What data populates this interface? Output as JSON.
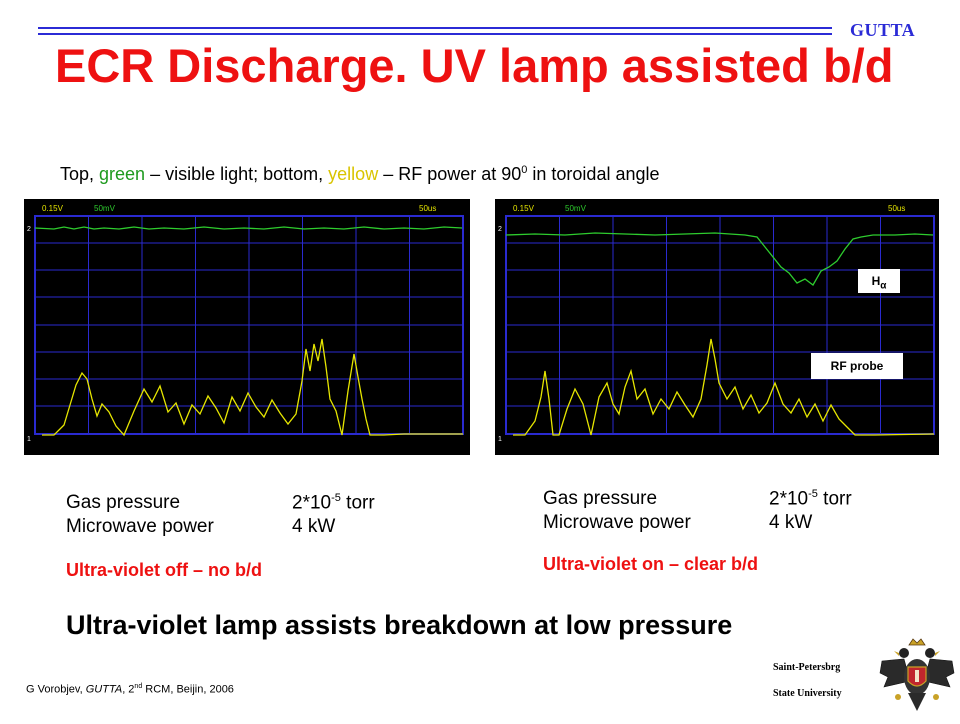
{
  "header": {
    "brand": "GUTTA",
    "title": "ECR Discharge. UV lamp assisted b/d"
  },
  "subtitle": {
    "p1": "Top, ",
    "green_word": "green",
    "p2": " – visible light; bottom, ",
    "yellow_word": "yellow",
    "p3": " – RF power at 90",
    "sup": "0",
    "p4": " in toroidal angle"
  },
  "scopes": [
    {
      "ch1": "0.15V",
      "ch2": "50mV",
      "timebase": "50us",
      "marker_top": "2",
      "marker_bottom": "1"
    },
    {
      "ch1": "0.15V",
      "ch2": "50mV",
      "timebase": "50us",
      "marker_top": "2",
      "marker_bottom": "1",
      "label_h": "H",
      "label_h_sub": "α",
      "label_rf": "RF probe"
    }
  ],
  "left_panel": {
    "gas_label": "Gas pressure",
    "gas_value": "2*10",
    "gas_exp": "-5",
    "gas_unit": " torr",
    "mw_label": "Microwave power",
    "mw_value": "4 kW",
    "status": "Ultra-violet off – no b/d"
  },
  "right_panel": {
    "gas_label": "Gas pressure",
    "gas_value": "2*10",
    "gas_exp": "-5",
    "gas_unit": " torr",
    "mw_label": "Microwave power",
    "mw_value": "4 kW",
    "status": "Ultra-violet on – clear b/d"
  },
  "conclusion": "Ultra-violet lamp assists breakdown at low pressure",
  "footer": {
    "author": "G Vorobjev, ",
    "project": "GUTTA",
    "mid": ", 2",
    "sup": "nd",
    "rest": " RCM, Beijin, 2006",
    "univ_line1": "Saint-Petersbrg",
    "univ_line2": "State University"
  },
  "colors": {
    "title": "#ee1111",
    "brand": "#2b2bd6",
    "green_trace": "#2ecc2e",
    "yellow_trace": "#e6e600",
    "grid": "#2a2ad0"
  },
  "icons": {
    "emblem": "double-headed-eagle-emblem-icon"
  }
}
